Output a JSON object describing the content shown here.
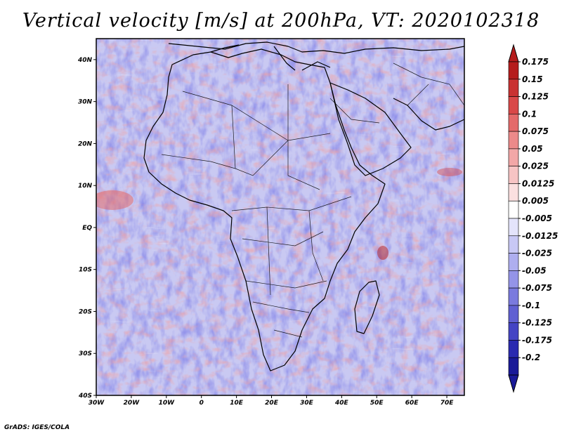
{
  "title": "Vertical velocity [m/s] at 200hPa, VT: 2020102318",
  "credit": "GrADS: IGES/COLA",
  "map": {
    "lon_range": [
      -30,
      75
    ],
    "lat_range": [
      -40,
      45
    ],
    "lat_ticks": [
      "40N",
      "30N",
      "20N",
      "10N",
      "EQ",
      "10S",
      "20S",
      "30S",
      "40S"
    ],
    "lat_values": [
      40,
      30,
      20,
      10,
      0,
      -10,
      -20,
      -30,
      -40
    ],
    "lon_ticks": [
      "30W",
      "20W",
      "10W",
      "0",
      "10E",
      "20E",
      "30E",
      "40E",
      "50E",
      "60E",
      "70E"
    ],
    "lon_values": [
      -30,
      -20,
      -10,
      0,
      10,
      20,
      30,
      40,
      50,
      60,
      70
    ]
  },
  "colorbar": {
    "labels": [
      "0.175",
      "0.15",
      "0.125",
      "0.1",
      "0.075",
      "0.05",
      "0.025",
      "0.0125",
      "0.005",
      "-0.005",
      "-0.0125",
      "-0.025",
      "-0.05",
      "-0.075",
      "-0.1",
      "-0.125",
      "-0.175",
      "-0.2"
    ],
    "colors": [
      "#b51c1c",
      "#c93232",
      "#d94848",
      "#e46a6a",
      "#ec8a8a",
      "#f2a7a7",
      "#f7c4c4",
      "#fbe0e0",
      "#ffffff",
      "#e4e4fb",
      "#c8c8f5",
      "#aeaeef",
      "#9494e8",
      "#7a7ade",
      "#6060d2",
      "#4444c4",
      "#2a2ab0",
      "#1a1a98"
    ],
    "top_color": "#b51c1c",
    "bottom_color": "#1a1a98"
  }
}
